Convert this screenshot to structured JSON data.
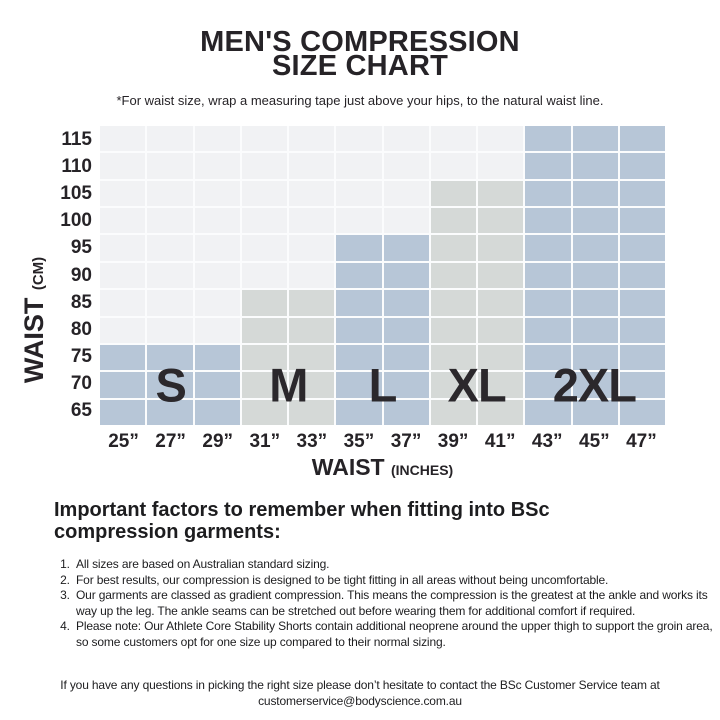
{
  "header": {
    "title_line1": "MEN'S COMPRESSION",
    "title_line2": "SIZE CHART",
    "subtitle": "*For waist size, wrap a measuring tape just above your hips, to the natural waist line."
  },
  "chart_data": {
    "type": "heatmap",
    "title": "MEN'S COMPRESSION SIZE CHART",
    "x_axis": {
      "label": "WAIST",
      "unit": "(INCHES)",
      "ticks": [
        "25”",
        "27”",
        "29”",
        "31”",
        "33”",
        "35”",
        "37”",
        "39”",
        "41”",
        "43”",
        "45”",
        "47”"
      ]
    },
    "y_axis": {
      "label": "WAIST",
      "unit": "(CM)",
      "ticks": [
        115,
        110,
        105,
        100,
        95,
        90,
        85,
        80,
        75,
        70,
        65
      ]
    },
    "grid": "on",
    "colors": {
      "size_blue": "#b7c6d7",
      "size_gray": "#d5d9d7",
      "empty_cell": "#f1f2f4",
      "gridline": "#fbfcfd"
    },
    "sizes": [
      {
        "label": "S",
        "waist_inches": [
          "25”",
          "27”",
          "29”"
        ],
        "waist_cm_min": 65,
        "waist_cm_max": 77,
        "color_key": "size_blue"
      },
      {
        "label": "M",
        "waist_inches": [
          "31”",
          "33”"
        ],
        "waist_cm_min": 65,
        "waist_cm_max": 87,
        "color_key": "size_gray"
      },
      {
        "label": "L",
        "waist_inches": [
          "35”",
          "37”"
        ],
        "waist_cm_min": 65,
        "waist_cm_max": 97,
        "color_key": "size_blue"
      },
      {
        "label": "XL",
        "waist_inches": [
          "39”",
          "41”"
        ],
        "waist_cm_min": 65,
        "waist_cm_max": 107,
        "color_key": "size_gray"
      },
      {
        "label": "2XL",
        "waist_inches": [
          "43”",
          "45”",
          "47”"
        ],
        "waist_cm_min": 65,
        "waist_cm_max": 117,
        "color_key": "size_blue"
      }
    ]
  },
  "factors": {
    "heading": "Important factors to remember when fitting into BSc compression garments:",
    "items": [
      "All sizes are based on Australian standard sizing.",
      "For best results, our compression is designed to be tight fitting in all areas without being uncomfortable.",
      "Our garments are classed as gradient compression. This means the compression is the greatest at the ankle and works its way up the leg. The ankle seams can be stretched out before wearing them for additional comfort if required.",
      "Please note: Our Athlete Core Stability Shorts contain additional neoprene around the upper thigh to support the groin area, so some customers opt for one size up compared to their normal sizing."
    ]
  },
  "footer": {
    "line1": "If you have any questions in picking the right size please don’t hesitate to contact the BSc Customer Service team at",
    "line2": "customerservice@bodyscience.com.au"
  }
}
